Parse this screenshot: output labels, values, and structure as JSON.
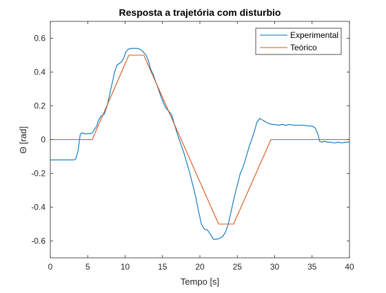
{
  "chart_data": {
    "type": "line",
    "title": "Resposta a trajetória com disturbio",
    "xlabel": "Tempo [s]",
    "ylabel": "Θ [rad]",
    "xlim": [
      0,
      40
    ],
    "ylim": [
      -0.7,
      0.7
    ],
    "xticks": [
      0,
      5,
      10,
      15,
      20,
      25,
      30,
      35,
      40
    ],
    "yticks": [
      -0.6,
      -0.4,
      -0.2,
      0,
      0.2,
      0.4,
      0.6
    ],
    "xtick_labels": [
      "0",
      "5",
      "10",
      "15",
      "20",
      "25",
      "30",
      "35",
      "40"
    ],
    "ytick_labels": [
      "-0.6",
      "-0.4",
      "-0.2",
      "0",
      "0.2",
      "0.4",
      "0.6"
    ],
    "grid": false,
    "legend_position": "top-right",
    "series": [
      {
        "name": "Experimental",
        "color": "#0072BD",
        "x": [
          0,
          3.2,
          3.4,
          3.7,
          4.0,
          4.2,
          4.6,
          5.0,
          5.3,
          5.6,
          5.9,
          6.2,
          6.4,
          6.8,
          7.2,
          7.6,
          8.0,
          8.4,
          8.6,
          8.9,
          9.2,
          9.5,
          9.8,
          10.1,
          10.4,
          10.8,
          11.2,
          11.6,
          12.0,
          12.4,
          12.8,
          13.1,
          13.4,
          13.8,
          14.2,
          14.6,
          15.0,
          15.4,
          15.8,
          16.2,
          16.6,
          17.0,
          17.4,
          17.8,
          18.2,
          18.6,
          19.0,
          19.4,
          19.8,
          20.2,
          20.6,
          21.0,
          21.4,
          21.8,
          22.2,
          22.6,
          23.0,
          23.4,
          23.8,
          24.2,
          24.6,
          25.0,
          25.4,
          25.8,
          26.2,
          26.6,
          27.0,
          27.3,
          27.6,
          28.0,
          28.4,
          28.8,
          29.2,
          29.6,
          30.0,
          30.5,
          31.0,
          31.5,
          32.0,
          32.5,
          33.0,
          33.5,
          34.0,
          34.5,
          35.0,
          35.4,
          35.8,
          36.0,
          36.3,
          36.6,
          37.0,
          37.5,
          38.0,
          38.5,
          39.0,
          39.5,
          40.0
        ],
        "y": [
          -0.12,
          -0.12,
          -0.115,
          -0.07,
          0.03,
          0.04,
          0.035,
          0.035,
          0.035,
          0.04,
          0.06,
          0.08,
          0.11,
          0.14,
          0.15,
          0.2,
          0.28,
          0.36,
          0.4,
          0.44,
          0.45,
          0.46,
          0.48,
          0.52,
          0.535,
          0.54,
          0.54,
          0.54,
          0.535,
          0.52,
          0.5,
          0.47,
          0.42,
          0.38,
          0.33,
          0.28,
          0.23,
          0.19,
          0.17,
          0.15,
          0.09,
          0.03,
          -0.02,
          -0.07,
          -0.13,
          -0.19,
          -0.26,
          -0.33,
          -0.42,
          -0.5,
          -0.53,
          -0.535,
          -0.56,
          -0.59,
          -0.59,
          -0.585,
          -0.575,
          -0.55,
          -0.5,
          -0.42,
          -0.34,
          -0.27,
          -0.2,
          -0.16,
          -0.1,
          -0.04,
          0.01,
          0.05,
          0.1,
          0.125,
          0.115,
          0.105,
          0.095,
          0.09,
          0.09,
          0.085,
          0.09,
          0.085,
          0.09,
          0.085,
          0.085,
          0.085,
          0.085,
          0.08,
          0.08,
          0.07,
          0.03,
          -0.01,
          -0.015,
          -0.01,
          -0.015,
          -0.015,
          -0.02,
          -0.015,
          -0.02,
          -0.015,
          -0.015
        ]
      },
      {
        "name": "Teórico",
        "color": "#D95319",
        "x": [
          0,
          5.6,
          10.5,
          12.5,
          22.5,
          24.5,
          29.5,
          40
        ],
        "y": [
          0,
          0,
          0.5,
          0.5,
          -0.5,
          -0.5,
          0,
          0
        ]
      }
    ]
  }
}
